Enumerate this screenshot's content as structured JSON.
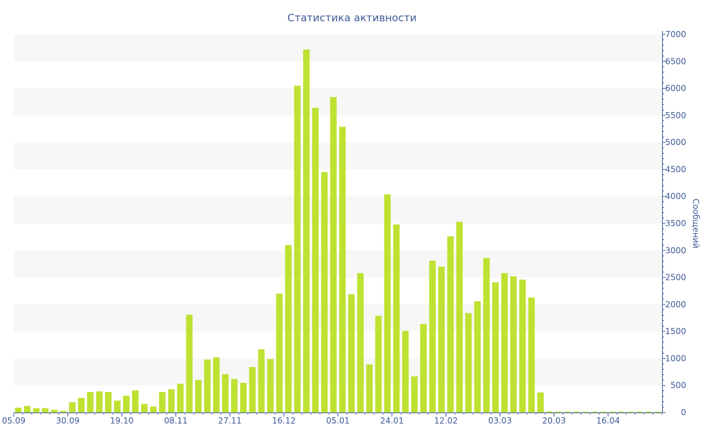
{
  "chart_data": {
    "type": "bar",
    "title": "Статистика активности",
    "ylabel": "Сообщений",
    "xlabel": "",
    "ylim": [
      0,
      7000
    ],
    "y_ticks": [
      0,
      500,
      1000,
      1500,
      2000,
      2500,
      3000,
      3500,
      4000,
      4500,
      5000,
      5500,
      6000,
      6500,
      7000
    ],
    "y_axis_side": "right",
    "x_tick_labels": [
      {
        "label": "05.09",
        "index": 0
      },
      {
        "label": "30.09",
        "index": 6
      },
      {
        "label": "19.10",
        "index": 12
      },
      {
        "label": "08.11",
        "index": 18
      },
      {
        "label": "27.11",
        "index": 24
      },
      {
        "label": "16.12",
        "index": 30
      },
      {
        "label": "05.01",
        "index": 36
      },
      {
        "label": "24.01",
        "index": 42
      },
      {
        "label": "12.02",
        "index": 48
      },
      {
        "label": "03.03",
        "index": 54
      },
      {
        "label": "20.03",
        "index": 60
      },
      {
        "label": "16.04",
        "index": 66
      }
    ],
    "values": [
      90,
      120,
      80,
      80,
      50,
      30,
      190,
      270,
      380,
      390,
      380,
      220,
      310,
      410,
      160,
      110,
      380,
      430,
      530,
      1810,
      600,
      980,
      1020,
      710,
      620,
      550,
      840,
      1170,
      990,
      2200,
      3100,
      6050,
      6720,
      5640,
      4450,
      5840,
      5290,
      2190,
      2580,
      890,
      1790,
      4040,
      3480,
      1510,
      670,
      1640,
      2810,
      2700,
      3260,
      3530,
      1840,
      2060,
      2860,
      2410,
      2580,
      2520,
      2460,
      2130,
      370,
      20,
      15,
      15,
      15,
      15,
      15,
      15,
      15,
      15,
      15,
      15,
      15,
      15
    ],
    "grid": "horizontal bands",
    "legend": "none",
    "bar_color": "#bde231",
    "band_color": "#f7f7f7",
    "text_color": "#3e5a96",
    "axis_color": "#3e5a96"
  }
}
